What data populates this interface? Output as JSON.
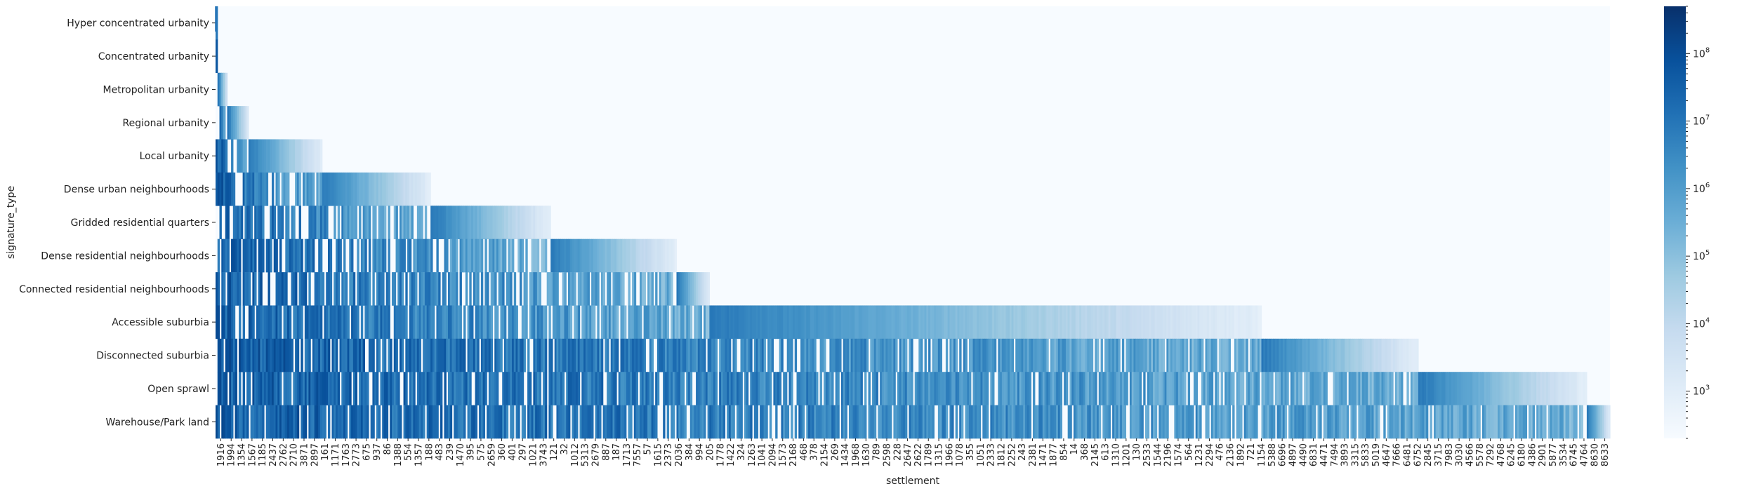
{
  "chart_data": {
    "type": "heatmap",
    "xlabel": "settlement",
    "ylabel": "signature_type",
    "rows": [
      "Hyper concentrated urbanity",
      "Concentrated urbanity",
      "Metropolitan urbanity",
      "Regional urbanity",
      "Local urbanity",
      "Dense urban neighbourhoods",
      "Gridded residential quarters",
      "Dense residential neighbourhoods",
      "Connected residential neighbourhoods",
      "Accessible suburbia",
      "Disconnected suburbia",
      "Open sprawl",
      "Warehouse/Park land"
    ],
    "column_fraction_first_zero_after_row": [
      0.0005,
      0.0015,
      0.009,
      0.024,
      0.077,
      0.154,
      0.24,
      0.331,
      0.354,
      0.75,
      0.862,
      0.984,
      1.0
    ],
    "x_tick_labels": [
      "1916",
      "1994",
      "1354",
      "1567",
      "1185",
      "2437",
      "2762",
      "2710",
      "3871",
      "2897",
      "161",
      "1171",
      "1763",
      "2773",
      "675",
      "937",
      "86",
      "1388",
      "554",
      "1357",
      "188",
      "483",
      "239",
      "1470",
      "395",
      "575",
      "2659",
      "360",
      "401",
      "297",
      "1021",
      "3743",
      "121",
      "32",
      "1012",
      "5313",
      "2679",
      "887",
      "187",
      "1713",
      "7557",
      "57",
      "1615",
      "2373",
      "2036",
      "384",
      "994",
      "205",
      "1778",
      "1422",
      "324",
      "1263",
      "1041",
      "2094",
      "1573",
      "2168",
      "468",
      "378",
      "2154",
      "269",
      "1434",
      "1968",
      "1630",
      "789",
      "2598",
      "228",
      "2647",
      "2622",
      "1789",
      "1315",
      "1966",
      "1078",
      "355",
      "1051",
      "2333",
      "1812",
      "2252",
      "243",
      "2381",
      "1471",
      "1877",
      "854",
      "14",
      "368",
      "2145",
      "613",
      "1310",
      "1201",
      "130",
      "2533",
      "1544",
      "2196",
      "1574",
      "564",
      "1231",
      "2294",
      "476",
      "2136",
      "1892",
      "721",
      "1154",
      "5388",
      "6696",
      "4897",
      "4490",
      "6831",
      "4471",
      "7494",
      "3893",
      "3315",
      "5833",
      "5019",
      "4647",
      "7666",
      "6481",
      "6752",
      "2845",
      "3715",
      "7983",
      "3030",
      "4566",
      "5578",
      "7292",
      "4768",
      "6245",
      "6180",
      "4386",
      "2901",
      "5877",
      "3534",
      "6745",
      "4764",
      "8630",
      "8633"
    ],
    "colorbar": {
      "scale": "log",
      "min": 200,
      "max": 500000000,
      "ticks": [
        {
          "base": "10",
          "exp": "3",
          "value": 1000
        },
        {
          "base": "10",
          "exp": "4",
          "value": 10000
        },
        {
          "base": "10",
          "exp": "5",
          "value": 100000
        },
        {
          "base": "10",
          "exp": "6",
          "value": 1000000
        },
        {
          "base": "10",
          "exp": "7",
          "value": 10000000
        },
        {
          "base": "10",
          "exp": "8",
          "value": 100000000
        }
      ],
      "colormap": "Blues",
      "colors": [
        "#f7fbff",
        "#deebf7",
        "#c6dbef",
        "#9ecae1",
        "#6baed6",
        "#4292c6",
        "#2171b5",
        "#08519c",
        "#08306b"
      ]
    }
  }
}
